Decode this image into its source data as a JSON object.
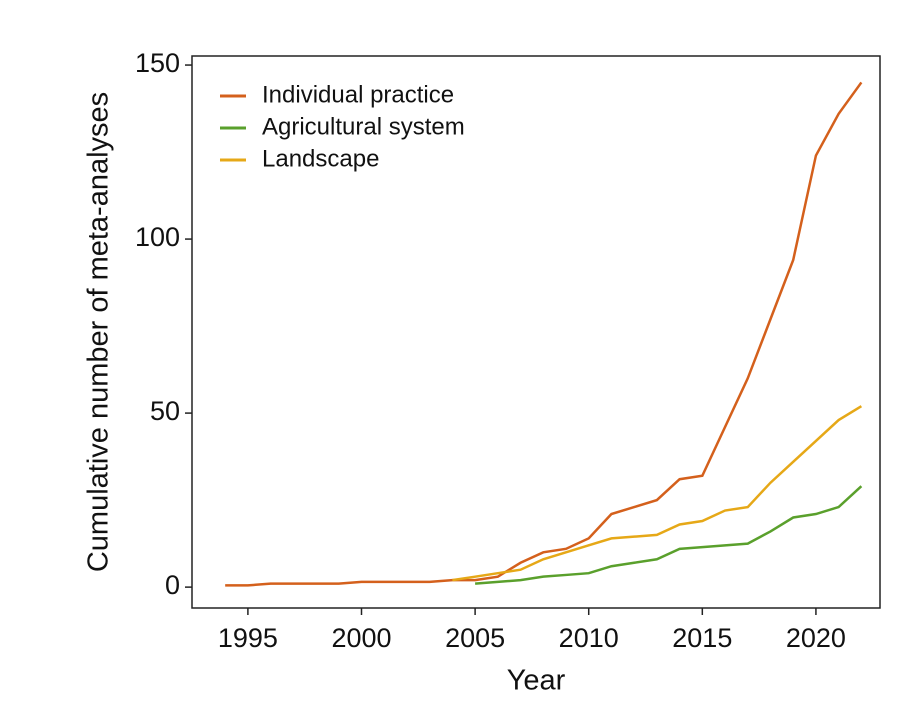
{
  "chart_data": {
    "type": "line",
    "x_label": "Year",
    "y_label": "Cumulative number of meta-analyses",
    "x": [
      1994,
      1995,
      1996,
      1997,
      1998,
      1999,
      2000,
      2001,
      2002,
      2003,
      2004,
      2005,
      2006,
      2007,
      2008,
      2009,
      2010,
      2011,
      2012,
      2013,
      2014,
      2015,
      2016,
      2017,
      2018,
      2019,
      2020,
      2021,
      2022
    ],
    "series": [
      {
        "name": "Individual practice",
        "color": "#d4601c",
        "values": [
          0.5,
          0.5,
          1,
          1,
          1,
          1,
          1.5,
          1.5,
          1.5,
          1.5,
          2,
          2,
          3,
          7,
          10,
          11,
          14,
          21,
          23,
          25,
          31,
          32,
          46,
          60,
          77,
          94,
          124,
          136,
          145
        ]
      },
      {
        "name": "Agricultural system",
        "color": "#5aa02c",
        "values": [
          null,
          null,
          null,
          null,
          null,
          null,
          null,
          null,
          null,
          null,
          null,
          1,
          1.5,
          2,
          3,
          3.5,
          4,
          6,
          7,
          8,
          11,
          11.5,
          12,
          12.5,
          16,
          20,
          21,
          23,
          29
        ]
      },
      {
        "name": "Landscape",
        "color": "#e6a817",
        "values": [
          null,
          null,
          null,
          null,
          null,
          null,
          null,
          null,
          null,
          null,
          2,
          3,
          4,
          5,
          8,
          10,
          12,
          14,
          14.5,
          15,
          18,
          19,
          22,
          23,
          30,
          36,
          42,
          48,
          52
        ]
      }
    ],
    "xlim": [
      1992.54,
      2022.82
    ],
    "xticks": [
      1995,
      2000,
      2005,
      2010,
      2015,
      2020
    ],
    "ylim": [
      -6,
      152.6
    ],
    "yticks": [
      0,
      50,
      100,
      150
    ],
    "legend": "top-left"
  }
}
